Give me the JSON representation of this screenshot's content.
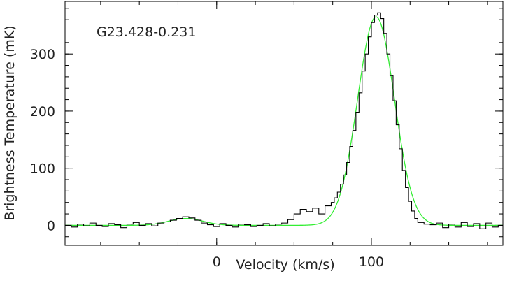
{
  "chart_data": {
    "type": "line",
    "annotation": "G23.428-0.231",
    "xlabel": "Velocity (km/s)",
    "ylabel": "Brightness Temperature (mK)",
    "xlim": [
      -98,
      185
    ],
    "ylim": [
      -35,
      392
    ],
    "x_ticks": [
      0,
      100
    ],
    "x_tick_labels": [
      "0",
      "100"
    ],
    "y_ticks": [
      0,
      100,
      200,
      300
    ],
    "y_tick_labels": [
      "0",
      "100",
      "200",
      "300"
    ],
    "x_minor_step": 25,
    "y_minor_step": 20,
    "series": [
      {
        "style": "step",
        "color": "#000000",
        "x": [
          -98,
          -94,
          -90,
          -86,
          -82,
          -78,
          -74,
          -70,
          -66,
          -62,
          -58,
          -54,
          -50,
          -46,
          -42,
          -38,
          -34,
          -30,
          -26,
          -22,
          -18,
          -14,
          -10,
          -6,
          -2,
          2,
          6,
          10,
          14,
          18,
          22,
          26,
          30,
          34,
          38,
          42,
          46,
          50,
          54,
          58,
          62,
          66,
          70,
          74,
          76,
          78,
          80,
          82,
          84,
          86,
          88,
          90,
          92,
          94,
          96,
          98,
          100,
          102,
          104,
          106,
          108,
          110,
          112,
          114,
          116,
          118,
          120,
          122,
          124,
          126,
          128,
          130,
          134,
          138,
          142,
          146,
          150,
          154,
          158,
          162,
          166,
          170,
          174,
          178,
          182
        ],
        "y": [
          0,
          -3,
          2,
          -1,
          4,
          0,
          -2,
          3,
          1,
          -4,
          2,
          5,
          0,
          3,
          -1,
          4,
          6,
          9,
          12,
          15,
          13,
          9,
          4,
          1,
          -2,
          3,
          0,
          -3,
          2,
          1,
          -2,
          0,
          3,
          -1,
          2,
          4,
          10,
          20,
          28,
          24,
          30,
          20,
          34,
          40,
          48,
          58,
          72,
          88,
          110,
          138,
          166,
          198,
          232,
          270,
          300,
          330,
          355,
          368,
          372,
          362,
          336,
          300,
          262,
          218,
          176,
          134,
          96,
          66,
          42,
          25,
          12,
          5,
          2,
          1,
          4,
          -4,
          2,
          -3,
          5,
          -2,
          3,
          -6,
          4,
          -3,
          0
        ]
      },
      {
        "style": "gaussian_fit",
        "color": "#33ee33",
        "components": [
          {
            "amplitude": 12,
            "center": -20,
            "fwhm": 26
          },
          {
            "amplitude": 365,
            "center": 103,
            "fwhm": 28
          }
        ]
      }
    ],
    "grid": false,
    "legend": "none"
  }
}
